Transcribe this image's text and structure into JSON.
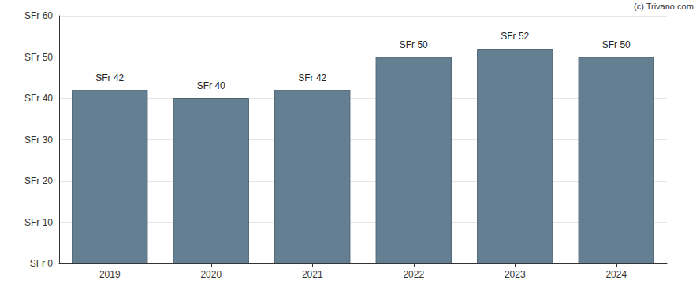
{
  "chart_data": {
    "type": "bar",
    "categories": [
      "2019",
      "2020",
      "2021",
      "2022",
      "2023",
      "2024"
    ],
    "values": [
      42,
      40,
      42,
      50,
      52,
      50
    ],
    "value_labels": [
      "SFr 42",
      "SFr 40",
      "SFr 42",
      "SFr 50",
      "SFr 52",
      "SFr 50"
    ],
    "data_labels": true,
    "color": "#647f91",
    "ylim": [
      0,
      60
    ],
    "yticks": [
      {
        "value": 0,
        "label": "SFr 0"
      },
      {
        "value": 10,
        "label": "SFr 10"
      },
      {
        "value": 20,
        "label": "SFr 20"
      },
      {
        "value": 30,
        "label": "SFr 30"
      },
      {
        "value": 40,
        "label": "SFr 40"
      },
      {
        "value": 50,
        "label": "SFr 50"
      },
      {
        "value": 60,
        "label": "SFr 60"
      }
    ],
    "grid": true,
    "annotations": [
      "(c) Trivano.com"
    ]
  }
}
